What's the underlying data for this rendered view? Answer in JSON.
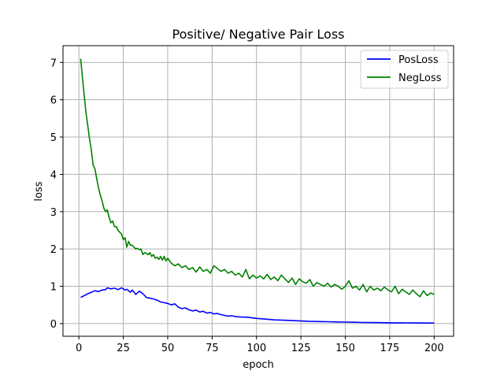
{
  "chart_data": {
    "type": "line",
    "title": "Positive/ Negative Pair Loss",
    "xlabel": "epoch",
    "ylabel": "loss",
    "xlim": [
      -8.95,
      210.95
    ],
    "ylim": [
      -0.34,
      7.45
    ],
    "xticks": [
      0,
      25,
      50,
      75,
      100,
      125,
      150,
      175,
      200
    ],
    "yticks": [
      0,
      1,
      2,
      3,
      4,
      5,
      6,
      7
    ],
    "grid": true,
    "legend_position": "top-right",
    "series": [
      {
        "name": "PosLoss",
        "color": "#0000ff",
        "x": [
          1,
          3,
          5,
          7,
          9,
          11,
          13,
          15,
          16,
          18,
          20,
          22,
          24,
          26,
          27,
          29,
          30,
          32,
          34,
          36,
          38,
          40,
          42,
          44,
          46,
          48,
          50,
          52,
          54,
          56,
          58,
          60,
          62,
          64,
          66,
          68,
          70,
          72,
          74,
          76,
          78,
          80,
          82,
          84,
          86,
          88,
          90,
          95,
          100,
          105,
          110,
          115,
          120,
          125,
          130,
          135,
          140,
          145,
          150,
          155,
          160,
          165,
          170,
          175,
          180,
          185,
          190,
          195,
          200
        ],
        "values": [
          0.7,
          0.75,
          0.8,
          0.84,
          0.88,
          0.86,
          0.9,
          0.91,
          0.96,
          0.93,
          0.95,
          0.91,
          0.96,
          0.9,
          0.92,
          0.84,
          0.9,
          0.78,
          0.87,
          0.8,
          0.7,
          0.68,
          0.66,
          0.63,
          0.58,
          0.56,
          0.54,
          0.5,
          0.53,
          0.44,
          0.4,
          0.42,
          0.37,
          0.34,
          0.36,
          0.31,
          0.33,
          0.28,
          0.3,
          0.26,
          0.27,
          0.24,
          0.22,
          0.2,
          0.21,
          0.19,
          0.18,
          0.17,
          0.14,
          0.12,
          0.1,
          0.09,
          0.08,
          0.07,
          0.06,
          0.055,
          0.05,
          0.045,
          0.04,
          0.035,
          0.03,
          0.028,
          0.025,
          0.022,
          0.02,
          0.018,
          0.016,
          0.015,
          0.014
        ]
      },
      {
        "name": "NegLoss",
        "color": "#008000",
        "x": [
          1,
          2,
          3,
          4,
          5,
          6,
          7,
          8,
          9,
          10,
          11,
          12,
          13,
          14,
          15,
          16,
          17,
          18,
          19,
          20,
          21,
          22,
          23,
          24,
          25,
          26,
          27,
          28,
          29,
          30,
          31,
          32,
          33,
          34,
          35,
          36,
          37,
          38,
          39,
          40,
          41,
          42,
          43,
          44,
          45,
          46,
          47,
          48,
          49,
          50,
          52,
          54,
          56,
          58,
          60,
          62,
          64,
          66,
          68,
          70,
          72,
          74,
          76,
          78,
          80,
          82,
          84,
          86,
          88,
          90,
          92,
          94,
          96,
          98,
          100,
          102,
          104,
          106,
          108,
          110,
          112,
          114,
          116,
          118,
          120,
          122,
          124,
          126,
          128,
          130,
          132,
          134,
          136,
          138,
          140,
          142,
          144,
          146,
          148,
          150,
          152,
          154,
          156,
          158,
          160,
          162,
          164,
          166,
          168,
          170,
          172,
          174,
          176,
          178,
          180,
          182,
          184,
          186,
          188,
          190,
          192,
          194,
          196,
          198,
          200
        ],
        "values": [
          7.1,
          6.6,
          6.1,
          5.65,
          5.3,
          4.95,
          4.65,
          4.25,
          4.15,
          3.9,
          3.65,
          3.45,
          3.3,
          3.1,
          3.0,
          3.05,
          2.85,
          2.7,
          2.75,
          2.6,
          2.6,
          2.5,
          2.45,
          2.4,
          2.25,
          2.3,
          2.05,
          2.2,
          2.1,
          2.1,
          2.05,
          2.0,
          2.02,
          1.98,
          2.0,
          1.85,
          1.9,
          1.88,
          1.85,
          1.9,
          1.8,
          1.85,
          1.75,
          1.78,
          1.72,
          1.8,
          1.7,
          1.8,
          1.68,
          1.75,
          1.62,
          1.55,
          1.6,
          1.5,
          1.55,
          1.45,
          1.5,
          1.38,
          1.52,
          1.4,
          1.45,
          1.35,
          1.55,
          1.48,
          1.4,
          1.45,
          1.35,
          1.4,
          1.3,
          1.35,
          1.25,
          1.45,
          1.2,
          1.3,
          1.22,
          1.28,
          1.2,
          1.32,
          1.18,
          1.25,
          1.15,
          1.3,
          1.2,
          1.1,
          1.22,
          1.05,
          1.2,
          1.12,
          1.08,
          1.18,
          1.0,
          1.1,
          1.05,
          1.0,
          1.08,
          0.98,
          1.05,
          1.0,
          0.92,
          1.0,
          1.15,
          0.95,
          1.0,
          0.9,
          1.05,
          0.85,
          1.0,
          0.9,
          0.95,
          0.88,
          0.98,
          0.9,
          0.85,
          1.0,
          0.8,
          0.92,
          0.85,
          0.78,
          0.9,
          0.8,
          0.72,
          0.88,
          0.75,
          0.82,
          0.78
        ]
      }
    ]
  }
}
